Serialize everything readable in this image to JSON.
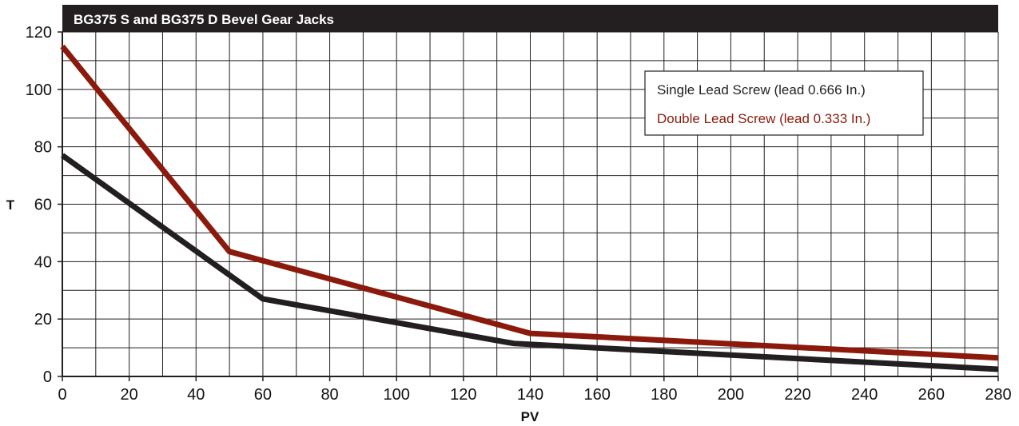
{
  "chart_data": {
    "type": "line",
    "title": "BG375 S and BG375 D Bevel Gear Jacks",
    "xlabel": "PV",
    "ylabel": "T",
    "xlim": [
      0,
      280
    ],
    "ylim": [
      0,
      120
    ],
    "x_ticks": [
      "0",
      "20",
      "40",
      "60",
      "80",
      "100",
      "120",
      "140",
      "160",
      "180",
      "200",
      "220",
      "240",
      "260",
      "280"
    ],
    "y_ticks": [
      "0",
      "20",
      "40",
      "60",
      "80",
      "100",
      "120"
    ],
    "grid": true,
    "legend_position": "top-right",
    "series": [
      {
        "name": "Single Lead Screw (lead 0.666 In.)",
        "color": "#231f20",
        "x": [
          0,
          60,
          135,
          280
        ],
        "y": [
          77,
          27,
          11.5,
          2.5
        ]
      },
      {
        "name": "Double Lead Screw (lead 0.333 In.)",
        "color": "#8b1a0c",
        "x": [
          0,
          50,
          140,
          280
        ],
        "y": [
          115,
          43.5,
          15,
          6.5
        ]
      }
    ]
  }
}
